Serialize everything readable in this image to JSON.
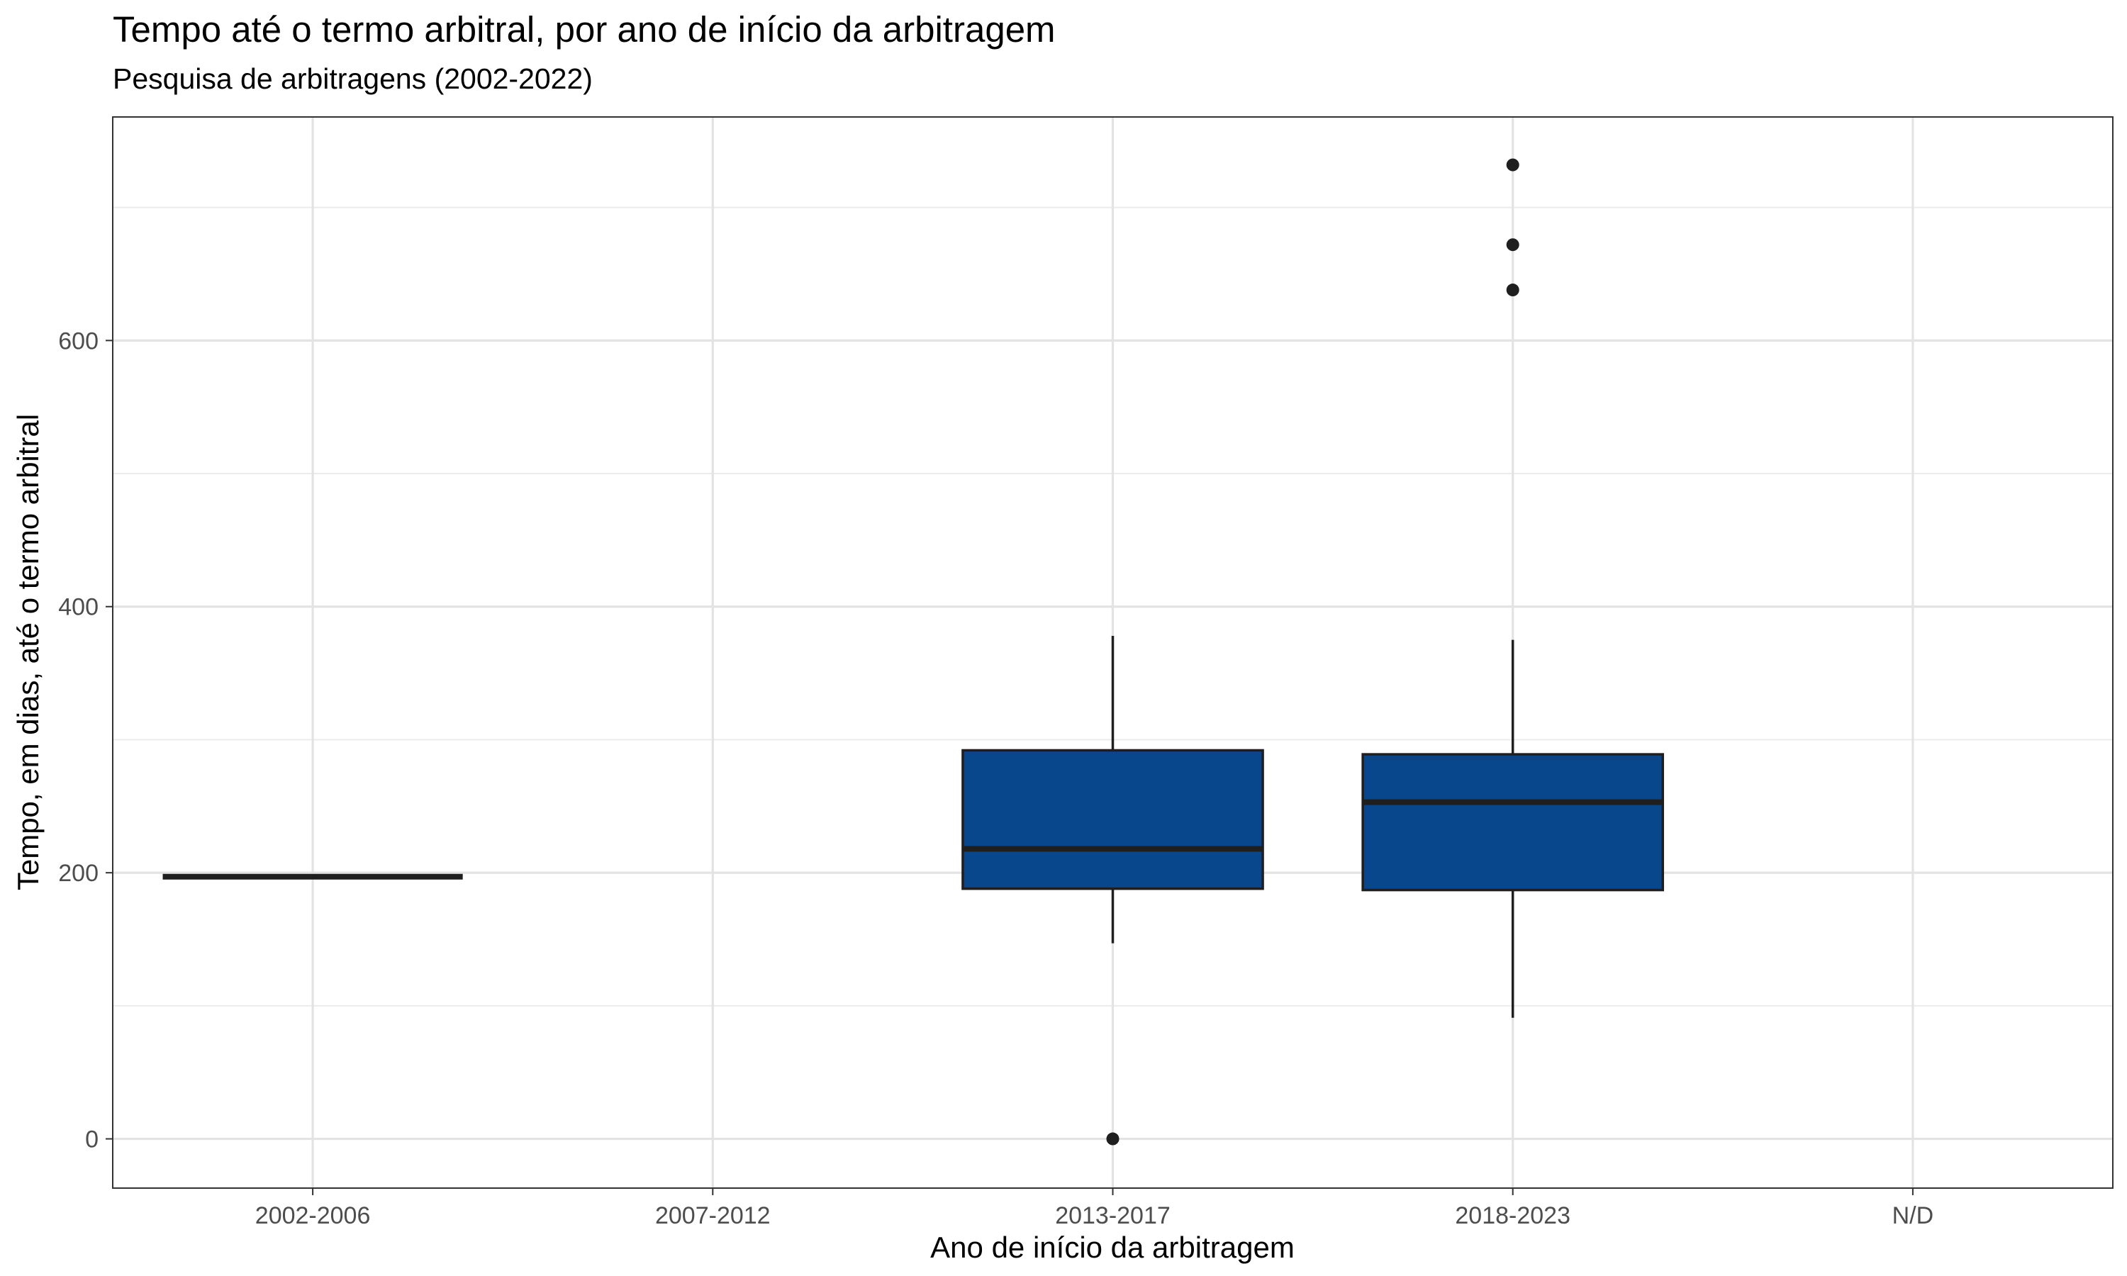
{
  "chart_data": {
    "type": "boxplot",
    "title": "Tempo até o termo arbitral, por ano de início da arbitragem",
    "subtitle": "Pesquisa de arbitragens (2002-2022)",
    "xlabel": "Ano de início da arbitragem",
    "ylabel": "Tempo, em dias, até o termo arbitral",
    "categories": [
      "2002-2006",
      "2007-2012",
      "2013-2017",
      "2018-2023",
      "N/D"
    ],
    "ylim": [
      -37,
      768
    ],
    "yticks": [
      0,
      200,
      400,
      600
    ],
    "grid": true,
    "legend": "none",
    "box_color": "#08478C",
    "outline_color": "#1f1f1f",
    "boxes": [
      {
        "category": "2002-2006",
        "min": 197,
        "q1": 197,
        "median": 197,
        "q3": 197,
        "max": 197,
        "outliers": []
      },
      {
        "category": "2013-2017",
        "min": 147,
        "q1": 188,
        "median": 218,
        "q3": 292,
        "max": 378,
        "outliers": [
          0
        ]
      },
      {
        "category": "2018-2023",
        "min": 91,
        "q1": 187,
        "median": 253,
        "q3": 289,
        "max": 375,
        "outliers": [
          638,
          672,
          732
        ]
      }
    ]
  }
}
